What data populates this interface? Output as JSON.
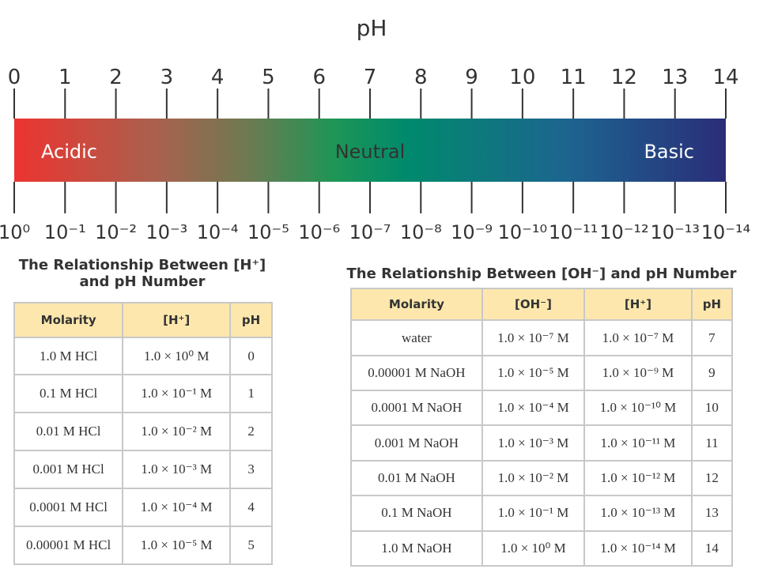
{
  "scale": {
    "title": "pH",
    "top_labels": [
      0,
      1,
      2,
      3,
      4,
      5,
      6,
      7,
      8,
      9,
      10,
      11,
      12,
      13,
      14
    ],
    "bottom_labels": [
      "10⁰",
      "10⁻¹",
      "10⁻²",
      "10⁻³",
      "10⁻⁴",
      "10⁻⁵",
      "10⁻⁶",
      "10⁻⁷",
      "10⁻⁸",
      "10⁻⁹",
      "10⁻¹⁰",
      "10⁻¹¹",
      "10⁻¹²",
      "10⁻¹³",
      "10⁻¹⁴"
    ],
    "band_labels": [
      "Acidic",
      "Neutral",
      "Basic"
    ]
  },
  "table_left": {
    "title": "The Relationship Between [H⁺] and pH Number",
    "header": [
      "Molarity",
      "[H⁺]",
      "pH"
    ],
    "rows": [
      [
        "1.0 M HCl",
        "1.0 × 10⁰ M",
        "0"
      ],
      [
        "0.1 M HCl",
        "1.0 × 10⁻¹ M",
        "1"
      ],
      [
        "0.01 M HCl",
        "1.0 × 10⁻² M",
        "2"
      ],
      [
        "0.001 M HCl",
        "1.0 × 10⁻³ M",
        "3"
      ],
      [
        "0.0001 M HCl",
        "1.0 × 10⁻⁴ M",
        "4"
      ],
      [
        "0.00001 M HCl",
        "1.0 × 10⁻⁵ M",
        "5"
      ]
    ]
  },
  "table_right": {
    "title": "The Relationship Between [OH⁻] and pH Number",
    "header": [
      "Molarity",
      "[OH⁻]",
      "[H⁺]",
      "pH"
    ],
    "rows": [
      [
        "water",
        "1.0 × 10⁻⁷ M",
        "1.0 × 10⁻⁷ M",
        "7"
      ],
      [
        "0.00001 M NaOH",
        "1.0 × 10⁻⁵ M",
        "1.0 × 10⁻⁹ M",
        "9"
      ],
      [
        "0.0001 M NaOH",
        "1.0 × 10⁻⁴ M",
        "1.0 × 10⁻¹⁰ M",
        "10"
      ],
      [
        "0.001 M NaOH",
        "1.0 × 10⁻³ M",
        "1.0 × 10⁻¹¹ M",
        "11"
      ],
      [
        "0.01 M NaOH",
        "1.0 × 10⁻² M",
        "1.0 × 10⁻¹² M",
        "12"
      ],
      [
        "0.1 M NaOH",
        "1.0 × 10⁻¹ M",
        "1.0 × 10⁻¹³ M",
        "13"
      ],
      [
        "1.0 M NaOH",
        "1.0 × 10⁰ M",
        "1.0 × 10⁻¹⁴ M",
        "14"
      ]
    ]
  }
}
